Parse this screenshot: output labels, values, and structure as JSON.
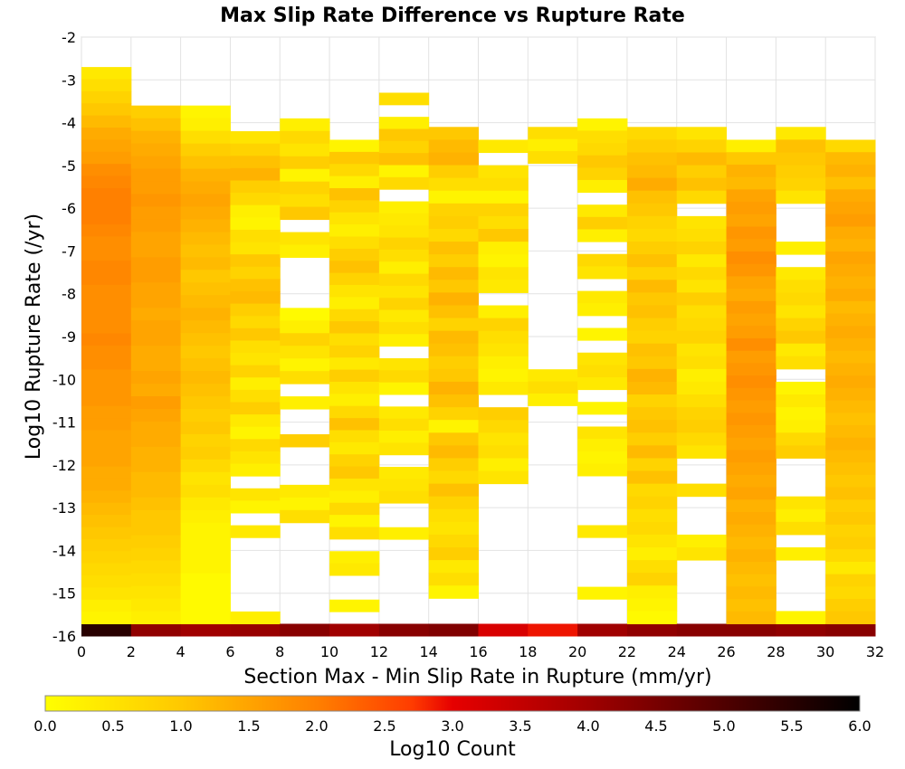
{
  "chart_data": {
    "type": "heatmap",
    "title": "Max Slip Rate Difference vs Rupture Rate",
    "xlabel": "Section Max - Min Slip Rate in Rupture (mm/yr)",
    "ylabel": "Log10 Rupture Rate (/yr)",
    "colorbar_label": "Log10 Count",
    "xlim": [
      0,
      32
    ],
    "ylim": [
      -16,
      -2
    ],
    "x_ticks": [
      "0",
      "2",
      "4",
      "6",
      "8",
      "10",
      "12",
      "14",
      "16",
      "18",
      "20",
      "22",
      "24",
      "26",
      "28",
      "30",
      "32"
    ],
    "y_ticks": [
      "-2",
      "-3",
      "-4",
      "-5",
      "-6",
      "-7",
      "-8",
      "-9",
      "-10",
      "-11",
      "-12",
      "-13",
      "-14",
      "-15",
      "-16"
    ],
    "colorbar_ticks": [
      "0.0",
      "0.5",
      "1.0",
      "1.5",
      "2.0",
      "2.5",
      "3.0",
      "3.5",
      "4.0",
      "4.5",
      "5.0",
      "5.5",
      "6.0"
    ],
    "colorbar_range": [
      0,
      6
    ],
    "x_bin_width": 2,
    "y_bin_height": 0.285714,
    "y_bin_bottom": -16,
    "grid": true,
    "cells": [
      {
        "x": 0,
        "top": -2.7,
        "vals": [
          0.4,
          0.6,
          0.8,
          1.0,
          1.2,
          1.4,
          1.5,
          1.6,
          1.8,
          1.9,
          2.0,
          2.0,
          2.0,
          1.9,
          1.8,
          1.8,
          1.9,
          1.9,
          1.8,
          1.8,
          1.8,
          1.8,
          1.9,
          1.8,
          1.8,
          1.7,
          1.7,
          1.7,
          1.6,
          1.6,
          1.5,
          1.5,
          1.5,
          1.4,
          1.4,
          1.3,
          1.2,
          1.1,
          1.0,
          0.9,
          0.8,
          0.7,
          0.6,
          0.5,
          0.3,
          0.2
        ],
        "bottom_val": 5.5
      },
      {
        "x": 2,
        "top": -3.6,
        "vals": [
          0.9,
          1.1,
          1.3,
          1.4,
          1.5,
          1.6,
          1.6,
          1.7,
          1.6,
          1.6,
          1.5,
          1.5,
          1.6,
          1.6,
          1.5,
          1.5,
          1.4,
          1.5,
          1.5,
          1.4,
          1.4,
          1.5,
          1.4,
          1.6,
          1.5,
          1.4,
          1.4,
          1.3,
          1.3,
          1.2,
          1.2,
          1.1,
          1.0,
          1.0,
          0.9,
          0.8,
          0.7,
          0.6,
          0.5,
          0.4,
          0.3
        ],
        "bottom_val": 4.2
      },
      {
        "x": 4,
        "top": -3.6,
        "vals": [
          0.2,
          0.3,
          0.6,
          0.9,
          1.1,
          1.3,
          1.4,
          1.5,
          1.4,
          1.3,
          1.2,
          1.1,
          1.2,
          1.0,
          1.1,
          1.2,
          1.3,
          1.2,
          1.1,
          1.0,
          1.1,
          1.2,
          1.1,
          1.0,
          0.9,
          1.0,
          0.8,
          0.9,
          0.7,
          0.5,
          0.6,
          0.4,
          0.3,
          0.2,
          0.2,
          0.2,
          0.2,
          0.1,
          0.1,
          0.1,
          0.1
        ],
        "bottom_val": 4.0
      },
      {
        "x": 6,
        "top": -4.2,
        "vals": [
          0.5,
          0.8,
          1.1,
          1.3,
          0.9,
          0.7,
          0.3,
          0.2,
          0.6,
          0.5,
          1.0,
          0.8,
          1.1,
          1.2,
          0.9,
          0.7,
          1.0,
          0.6,
          0.5,
          0.8,
          0.3,
          0.6,
          0.9,
          0.4,
          0.2,
          0.7,
          0.5,
          0.3,
          null,
          0.5,
          0.2,
          null,
          0.4,
          null,
          null,
          null,
          null,
          null,
          null,
          0.3
        ],
        "bottom_val": 4.1
      },
      {
        "x": 8,
        "top": -3.9,
        "vals": [
          0.3,
          0.7,
          0.5,
          0.9,
          0.2,
          0.8,
          0.6,
          1.0,
          null,
          0.5,
          0.3,
          null,
          null,
          null,
          null,
          0.1,
          0.3,
          0.8,
          0.5,
          0.2,
          0.6,
          null,
          0.3,
          null,
          null,
          0.9,
          null,
          null,
          null,
          0.4,
          0.2,
          0.6,
          null,
          null,
          null,
          null,
          null,
          null,
          null,
          null
        ],
        "bottom_val": 4.3
      },
      {
        "x": 10,
        "top": -4.4,
        "vals": [
          0.2,
          1.0,
          0.7,
          0.3,
          1.1,
          0.8,
          0.5,
          0.3,
          0.6,
          0.9,
          1.1,
          0.8,
          0.5,
          0.3,
          0.7,
          1.0,
          0.6,
          0.8,
          0.4,
          0.9,
          0.5,
          0.3,
          0.7,
          1.1,
          0.6,
          0.4,
          0.8,
          1.0,
          0.5,
          0.3,
          0.7,
          0.2,
          0.6,
          null,
          0.3,
          0.4,
          null,
          null,
          0.2,
          null
        ],
        "bottom_val": 4.0
      },
      {
        "x": 12,
        "top": -3.3,
        "vals": [
          0.6,
          null,
          0.3,
          1.0,
          0.8,
          1.1,
          0.2,
          0.7,
          null,
          0.3,
          0.4,
          0.5,
          0.8,
          0.6,
          0.3,
          0.7,
          0.5,
          0.8,
          0.4,
          0.6,
          0.3,
          null,
          0.5,
          0.7,
          0.2,
          null,
          0.4,
          0.6,
          0.3,
          0.5,
          null,
          0.4,
          0.5,
          0.6,
          null,
          null,
          0.3,
          null,
          null,
          null,
          null,
          null,
          null,
          null
        ],
        "bottom_val": 4.3
      },
      {
        "x": 14,
        "top": -4.1,
        "vals": [
          1.0,
          1.2,
          1.3,
          0.9,
          0.6,
          0.2,
          0.8,
          0.9,
          0.7,
          1.1,
          0.9,
          1.2,
          1.0,
          1.3,
          1.1,
          0.8,
          1.2,
          1.1,
          0.9,
          1.0,
          1.3,
          1.1,
          0.8,
          0.2,
          1.0,
          1.2,
          0.9,
          0.7,
          1.1,
          0.8,
          0.6,
          0.5,
          0.7,
          0.9,
          0.4,
          0.6,
          0.2,
          null,
          null
        ],
        "bottom_val": 4.4
      },
      {
        "x": 16,
        "top": -4.4,
        "vals": [
          0.4,
          null,
          0.5,
          0.6,
          0.2,
          0.8,
          0.6,
          1.0,
          0.3,
          0.2,
          0.5,
          0.4,
          null,
          0.3,
          0.8,
          0.6,
          0.5,
          0.3,
          0.2,
          0.4,
          null,
          0.9,
          0.7,
          0.5,
          0.6,
          0.3,
          0.5,
          null,
          null,
          null,
          null,
          null,
          null,
          null,
          null,
          null,
          null,
          null
        ],
        "bottom_val": 3.2
      },
      {
        "x": 18,
        "top": -4.1,
        "vals": [
          0.6,
          0.3,
          0.6,
          null,
          null,
          null,
          null,
          null,
          null,
          null,
          null,
          null,
          null,
          null,
          null,
          null,
          null,
          null,
          null,
          null,
          0.4,
          0.6,
          0.3,
          null,
          null,
          null,
          null,
          null,
          null,
          null,
          null,
          null,
          null,
          null,
          null,
          null,
          null,
          null,
          null,
          null,
          null
        ],
        "bottom_val": 2.9
      },
      {
        "x": 20,
        "top": -3.9,
        "vals": [
          0.2,
          0.6,
          0.7,
          1.0,
          0.8,
          0.3,
          null,
          0.4,
          0.9,
          0.3,
          null,
          0.7,
          0.5,
          null,
          0.4,
          0.3,
          null,
          0.2,
          null,
          0.5,
          0.6,
          0.4,
          null,
          0.2,
          null,
          0.5,
          0.3,
          0.2,
          0.3,
          null,
          null,
          null,
          null,
          0.4,
          null,
          null,
          null,
          null,
          0.2,
          null,
          null
        ],
        "bottom_val": 4.0
      },
      {
        "x": 22,
        "top": -4.1,
        "vals": [
          0.7,
          0.9,
          1.1,
          1.2,
          1.4,
          1.1,
          1.0,
          0.8,
          0.7,
          0.9,
          1.1,
          0.8,
          1.2,
          1.0,
          1.1,
          0.9,
          0.8,
          1.1,
          1.0,
          1.3,
          1.2,
          0.8,
          1.0,
          1.1,
          0.9,
          1.2,
          0.8,
          1.1,
          0.7,
          0.8,
          0.6,
          0.7,
          0.5,
          0.3,
          0.6,
          0.8,
          0.3,
          0.2,
          0.1
        ],
        "bottom_val": 4.2
      },
      {
        "x": 24,
        "top": -4.1,
        "vals": [
          0.5,
          0.8,
          1.2,
          0.9,
          1.1,
          0.7,
          null,
          0.5,
          0.6,
          0.8,
          0.4,
          0.7,
          0.5,
          0.9,
          0.6,
          0.7,
          0.8,
          0.5,
          0.6,
          0.3,
          0.4,
          0.6,
          0.8,
          0.9,
          0.7,
          0.5,
          null,
          null,
          0.6,
          null,
          null,
          null,
          0.3,
          0.5,
          null,
          null,
          null,
          null,
          null
        ],
        "bottom_val": 4.3
      },
      {
        "x": 26,
        "top": -4.4,
        "vals": [
          0.3,
          1.0,
          1.3,
          1.2,
          1.5,
          1.6,
          1.5,
          1.7,
          1.6,
          1.8,
          1.7,
          1.5,
          1.4,
          1.6,
          1.5,
          1.6,
          1.8,
          1.6,
          1.7,
          1.8,
          1.7,
          1.6,
          1.7,
          1.6,
          1.5,
          1.6,
          1.5,
          1.4,
          1.5,
          1.3,
          1.4,
          1.3,
          1.2,
          1.3,
          1.2,
          1.1,
          1.2,
          1.1,
          1.2
        ],
        "bottom_val": 4.3
      },
      {
        "x": 28,
        "top": -4.1,
        "vals": [
          0.4,
          1.1,
          1.0,
          0.9,
          0.8,
          0.5,
          null,
          null,
          null,
          0.3,
          null,
          0.4,
          0.6,
          0.7,
          0.5,
          0.8,
          1.0,
          0.4,
          0.6,
          null,
          0.2,
          0.4,
          0.2,
          0.3,
          0.7,
          0.9,
          null,
          null,
          null,
          0.5,
          0.3,
          0.6,
          null,
          0.3,
          null,
          null,
          null,
          null,
          0.2
        ],
        "bottom_val": 4.2
      },
      {
        "x": 30,
        "top": -4.4,
        "vals": [
          0.7,
          1.2,
          1.3,
          1.1,
          1.4,
          1.5,
          1.6,
          1.4,
          1.3,
          1.5,
          1.4,
          1.3,
          1.4,
          1.2,
          1.3,
          1.4,
          1.3,
          1.2,
          1.3,
          1.4,
          1.3,
          1.2,
          1.1,
          1.2,
          1.3,
          1.2,
          1.1,
          1.0,
          1.1,
          0.9,
          1.0,
          0.8,
          0.9,
          0.7,
          0.4,
          0.8,
          0.7,
          0.9,
          1.0
        ],
        "bottom_val": 4.3
      }
    ]
  }
}
